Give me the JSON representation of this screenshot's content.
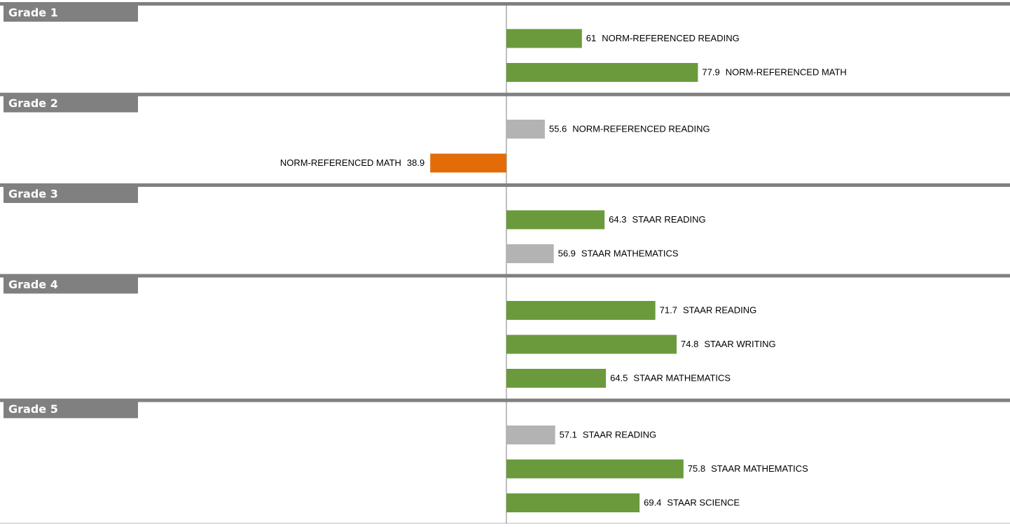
{
  "chart_data": {
    "type": "diverging-bar",
    "baseline": 50,
    "xlim": [
      0,
      100
    ],
    "groups": [
      {
        "name": "Grade 1",
        "items": [
          {
            "label": "NORM-REFERENCED READING",
            "value": 61,
            "color": "#6b9a3c"
          },
          {
            "label": "NORM-REFERENCED MATH",
            "value": 77.9,
            "color": "#6b9a3c"
          }
        ]
      },
      {
        "name": "Grade 2",
        "items": [
          {
            "label": "NORM-REFERENCED READING",
            "value": 55.6,
            "color": "#b3b3b3"
          },
          {
            "label": "NORM-REFERENCED MATH",
            "value": 38.9,
            "color": "#e36c09"
          }
        ]
      },
      {
        "name": "Grade 3",
        "items": [
          {
            "label": "STAAR READING",
            "value": 64.3,
            "color": "#6b9a3c"
          },
          {
            "label": "STAAR MATHEMATICS",
            "value": 56.9,
            "color": "#b3b3b3"
          }
        ]
      },
      {
        "name": "Grade 4",
        "items": [
          {
            "label": "STAAR READING",
            "value": 71.7,
            "color": "#6b9a3c"
          },
          {
            "label": "STAAR WRITING",
            "value": 74.8,
            "color": "#6b9a3c"
          },
          {
            "label": "STAAR MATHEMATICS",
            "value": 64.5,
            "color": "#6b9a3c"
          }
        ]
      },
      {
        "name": "Grade 5",
        "items": [
          {
            "label": "STAAR READING",
            "value": 57.1,
            "color": "#b3b3b3"
          },
          {
            "label": "STAAR MATHEMATICS",
            "value": 75.8,
            "color": "#6b9a3c"
          },
          {
            "label": "STAAR SCIENCE",
            "value": 69.4,
            "color": "#6b9a3c"
          }
        ]
      }
    ]
  }
}
